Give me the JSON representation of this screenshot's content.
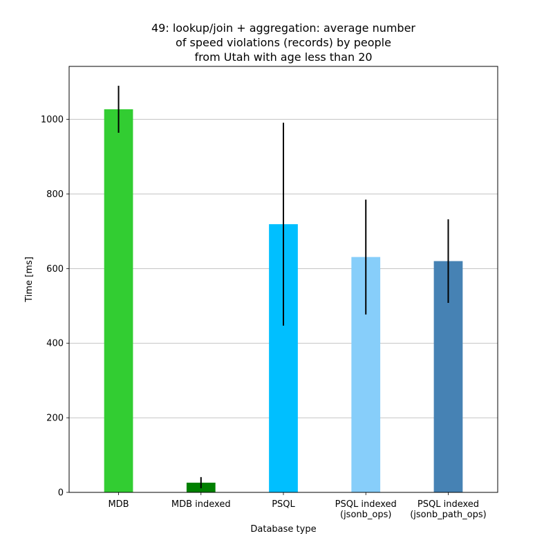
{
  "chart_data": {
    "type": "bar",
    "title": [
      "49: lookup/join + aggregation: average number",
      "of speed violations (records) by people",
      "from Utah with age less than 20"
    ],
    "xlabel": "Database type",
    "ylabel": "Time [ms]",
    "categories": [
      [
        "MDB"
      ],
      [
        "MDB indexed"
      ],
      [
        "PSQL"
      ],
      [
        "PSQL indexed",
        "(jsonb_ops)"
      ],
      [
        "PSQL indexed",
        "(jsonb_path_ops)"
      ]
    ],
    "values": [
      1027,
      26,
      719,
      631,
      620
    ],
    "errors": [
      63,
      15,
      272,
      154,
      112
    ],
    "colors": [
      "#32cd32",
      "#008000",
      "#00bfff",
      "#87cefa",
      "#4682b4"
    ],
    "ylim": [
      0,
      1142
    ],
    "yticks": [
      0,
      200,
      400,
      600,
      800,
      1000
    ],
    "grid": "y",
    "legend": "none"
  }
}
